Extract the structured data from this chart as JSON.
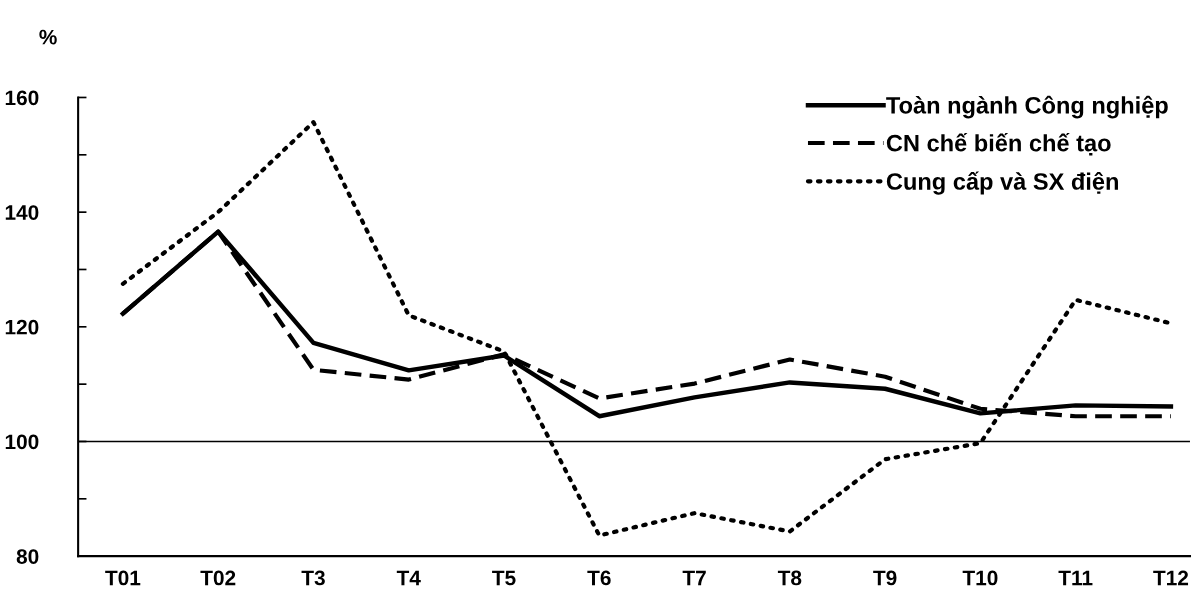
{
  "chart_data": {
    "type": "line",
    "ylabel": "%",
    "categories": [
      "T01",
      "T02",
      "T3",
      "T4",
      "T5",
      "T6",
      "T7",
      "T8",
      "T9",
      "T10",
      "T11",
      "T12"
    ],
    "series": [
      {
        "name": "Toàn ngành Công nghiệp",
        "color": "#000000",
        "line_style": "solid",
        "values": [
          122.3,
          136.6,
          117.2,
          112.4,
          115.0,
          104.4,
          107.7,
          110.3,
          109.2,
          104.9,
          106.3,
          106.1
        ]
      },
      {
        "name": "CN chế biến chế tạo",
        "color": "#000000",
        "line_style": "dashed",
        "values": [
          122.3,
          136.6,
          112.5,
          110.8,
          115.2,
          107.5,
          110.1,
          114.3,
          111.3,
          105.7,
          104.4,
          104.4
        ]
      },
      {
        "name": "Cung cấp và SX điện",
        "color": "#000000",
        "line_style": "dotted",
        "values": [
          127.5,
          140.0,
          155.7,
          122.0,
          115.7,
          83.6,
          87.5,
          84.3,
          96.9,
          99.7,
          124.7,
          120.6
        ]
      }
    ],
    "ylim": [
      80,
      160
    ],
    "yticks": [
      80,
      {
        "value": 90,
        "label": null
      },
      100,
      {
        "value": 110,
        "label": null
      },
      120,
      {
        "value": 130,
        "label": null
      },
      140,
      {
        "value": 150,
        "label": null
      },
      160
    ],
    "ref_lines": [
      {
        "axis": "y",
        "value": 100,
        "color": "#000000",
        "line_style": "solid"
      }
    ],
    "grid": false,
    "legend": "top right",
    "marker": "none"
  }
}
